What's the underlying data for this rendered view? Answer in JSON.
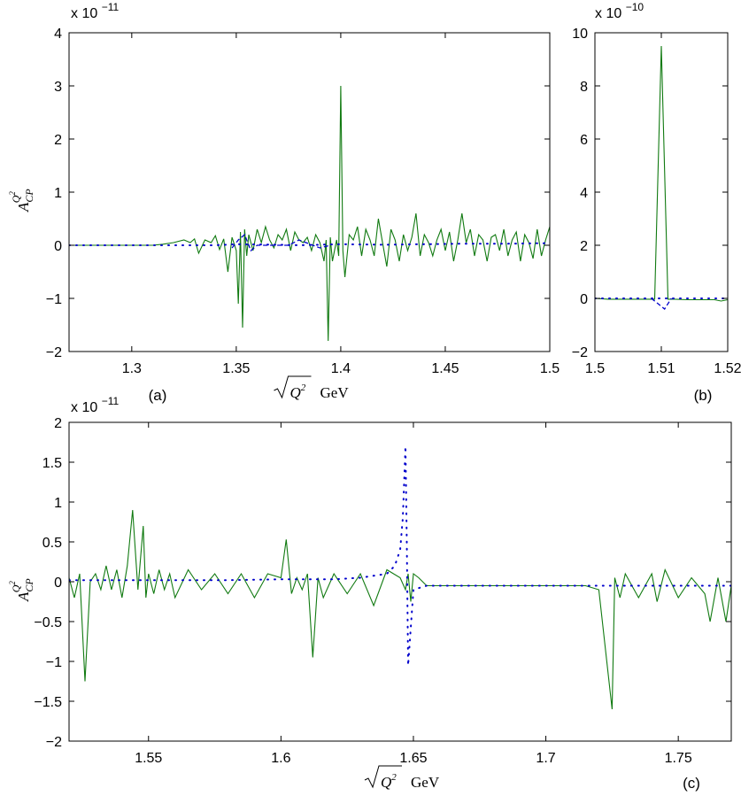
{
  "chart_data": [
    {
      "panel": "(a)",
      "type": "line",
      "xlabel": "√Q² GeV",
      "ylabel": "A_CP^{Q²}",
      "exponent_label": "x 10",
      "exponent_power": "−11",
      "xlim": [
        1.27,
        1.5
      ],
      "ylim": [
        -2,
        4
      ],
      "xticks": [
        1.3,
        1.35,
        1.4,
        1.45,
        1.5
      ],
      "xtick_labels": [
        "1.3",
        "1.35",
        "1.4",
        "1.45",
        "1.5"
      ],
      "yticks": [
        -2,
        -1,
        0,
        1,
        2,
        3,
        4
      ],
      "ytick_labels": [
        "−2",
        "−1",
        "0",
        "1",
        "2",
        "3",
        "4"
      ],
      "series": [
        {
          "style": "solid",
          "color": "#117a11",
          "x": [
            1.27,
            1.31,
            1.315,
            1.32,
            1.325,
            1.328,
            1.33,
            1.332,
            1.335,
            1.338,
            1.34,
            1.342,
            1.344,
            1.346,
            1.348,
            1.35,
            1.351,
            1.352,
            1.353,
            1.354,
            1.355,
            1.356,
            1.358,
            1.36,
            1.362,
            1.364,
            1.366,
            1.368,
            1.37,
            1.372,
            1.374,
            1.376,
            1.378,
            1.38,
            1.382,
            1.384,
            1.386,
            1.388,
            1.39,
            1.392,
            1.393,
            1.394,
            1.395,
            1.396,
            1.398,
            1.399,
            1.4,
            1.401,
            1.402,
            1.404,
            1.406,
            1.408,
            1.41,
            1.412,
            1.414,
            1.416,
            1.418,
            1.42,
            1.422,
            1.424,
            1.426,
            1.428,
            1.43,
            1.432,
            1.434,
            1.436,
            1.438,
            1.44,
            1.442,
            1.444,
            1.446,
            1.448,
            1.45,
            1.452,
            1.454,
            1.456,
            1.458,
            1.46,
            1.462,
            1.464,
            1.466,
            1.468,
            1.47,
            1.472,
            1.474,
            1.476,
            1.478,
            1.48,
            1.482,
            1.484,
            1.486,
            1.488,
            1.49,
            1.492,
            1.494,
            1.496,
            1.498,
            1.5
          ],
          "y": [
            0,
            0,
            0.02,
            0.05,
            0.1,
            0.05,
            0.12,
            -0.15,
            0.1,
            0.05,
            0.18,
            -0.08,
            0.12,
            -0.5,
            0.15,
            -0.1,
            -1.1,
            0.25,
            -1.55,
            0.3,
            -0.2,
            0.2,
            -0.1,
            0.3,
            0.05,
            0.35,
            0.1,
            -0.05,
            0.2,
            0.1,
            0.3,
            -0.1,
            0.25,
            0.1,
            0.05,
            0.15,
            -0.1,
            0.2,
            0.05,
            -0.3,
            0.1,
            -1.8,
            0.15,
            -0.3,
            0.1,
            -0.2,
            3.0,
            -0.1,
            -0.6,
            0.2,
            0.1,
            0.35,
            -0.2,
            0.3,
            0.1,
            -0.2,
            0.5,
            0.05,
            -0.4,
            0.3,
            0.1,
            -0.3,
            0.2,
            -0.1,
            0.15,
            0.6,
            -0.2,
            0.2,
            0.05,
            -0.2,
            0.1,
            0.3,
            -0.1,
            0.25,
            -0.3,
            0.1,
            0.6,
            0.05,
            0.3,
            -0.2,
            0.2,
            0.1,
            -0.3,
            0.15,
            0.2,
            -0.1,
            0.3,
            -0.2,
            0.1,
            0.25,
            -0.3,
            0.2,
            0.05,
            -0.25,
            0.3,
            -0.2,
            0.1,
            0.35
          ]
        },
        {
          "style": "dashed",
          "color": "#0000cc",
          "x": [
            1.348,
            1.351,
            1.354,
            1.357,
            1.36,
            1.375,
            1.38,
            1.39,
            1.395
          ],
          "y": [
            -0.05,
            0.1,
            0.2,
            -0.1,
            0.0,
            0.0,
            0.1,
            -0.05,
            0.0
          ]
        },
        {
          "style": "dotted",
          "color": "#0000cc",
          "x": [
            1.27,
            1.28,
            1.29,
            1.3,
            1.31,
            1.32,
            1.33,
            1.34,
            1.35,
            1.37,
            1.38,
            1.4,
            1.42,
            1.44,
            1.46,
            1.48,
            1.5
          ],
          "y": [
            0,
            0,
            0,
            0,
            0,
            0,
            0,
            0,
            0.02,
            0.01,
            0.0,
            0.02,
            0.01,
            0.02,
            0.03,
            0.03,
            0.04
          ]
        }
      ]
    },
    {
      "panel": "(b)",
      "type": "line",
      "xlabel": "",
      "ylabel": "",
      "exponent_label": "x 10",
      "exponent_power": "−10",
      "xlim": [
        1.5,
        1.52
      ],
      "ylim": [
        -2,
        10
      ],
      "xticks": [
        1.5,
        1.51,
        1.52
      ],
      "xtick_labels": [
        "1.5",
        "1.51",
        "1.52"
      ],
      "yticks": [
        -2,
        0,
        2,
        4,
        6,
        8,
        10
      ],
      "ytick_labels": [
        "−2",
        "0",
        "2",
        "4",
        "6",
        "8",
        "10"
      ],
      "series": [
        {
          "style": "solid",
          "color": "#117a11",
          "x": [
            1.5,
            1.502,
            1.504,
            1.506,
            1.508,
            1.509,
            1.51,
            1.511,
            1.512,
            1.514,
            1.516,
            1.518,
            1.519,
            1.52
          ],
          "y": [
            0,
            -0.03,
            -0.03,
            -0.03,
            -0.03,
            -0.03,
            9.5,
            -0.03,
            -0.03,
            -0.05,
            -0.05,
            -0.05,
            -0.1,
            -0.05
          ]
        },
        {
          "style": "dashed",
          "color": "#0000cc",
          "x": [
            1.5085,
            1.5095,
            1.5105,
            1.5115
          ],
          "y": [
            0.0,
            -0.2,
            -0.4,
            0.0
          ]
        },
        {
          "style": "dotted",
          "color": "#0000cc",
          "x": [
            1.5,
            1.505,
            1.51,
            1.515,
            1.52
          ],
          "y": [
            0,
            0,
            0,
            0,
            0
          ]
        }
      ]
    },
    {
      "panel": "(c)",
      "type": "line",
      "xlabel": "√Q² GeV",
      "ylabel": "A_CP^{Q²}",
      "exponent_label": "x 10",
      "exponent_power": "−11",
      "xlim": [
        1.52,
        1.77
      ],
      "ylim": [
        -2,
        2
      ],
      "xticks": [
        1.55,
        1.6,
        1.65,
        1.7,
        1.75
      ],
      "xtick_labels": [
        "1.55",
        "1.6",
        "1.65",
        "1.7",
        "1.75"
      ],
      "yticks": [
        -2,
        -1.5,
        -1,
        -0.5,
        0,
        0.5,
        1,
        1.5,
        2
      ],
      "ytick_labels": [
        "−2",
        "−1.5",
        "−1",
        "−0.5",
        "0",
        "0.5",
        "1",
        "1.5",
        "2"
      ],
      "series": [
        {
          "style": "solid",
          "color": "#117a11",
          "x": [
            1.52,
            1.522,
            1.524,
            1.526,
            1.528,
            1.53,
            1.532,
            1.534,
            1.536,
            1.538,
            1.54,
            1.542,
            1.544,
            1.546,
            1.548,
            1.549,
            1.55,
            1.552,
            1.554,
            1.556,
            1.558,
            1.56,
            1.565,
            1.57,
            1.575,
            1.58,
            1.585,
            1.59,
            1.595,
            1.6,
            1.602,
            1.604,
            1.606,
            1.608,
            1.61,
            1.612,
            1.614,
            1.616,
            1.62,
            1.625,
            1.63,
            1.635,
            1.64,
            1.645,
            1.647,
            1.648,
            1.649,
            1.65,
            1.652,
            1.655,
            1.66,
            1.67,
            1.68,
            1.69,
            1.7,
            1.705,
            1.71,
            1.715,
            1.72,
            1.725,
            1.726,
            1.728,
            1.73,
            1.735,
            1.74,
            1.742,
            1.745,
            1.75,
            1.755,
            1.76,
            1.762,
            1.765,
            1.768,
            1.77
          ],
          "y": [
            0.05,
            -0.2,
            0.1,
            -1.25,
            0.0,
            0.1,
            -0.1,
            0.2,
            -0.1,
            0.15,
            -0.2,
            0.2,
            0.9,
            -0.1,
            0.7,
            -0.2,
            0.1,
            -0.15,
            0.15,
            -0.1,
            0.1,
            -0.2,
            0.15,
            -0.1,
            0.1,
            -0.15,
            0.1,
            -0.2,
            0.1,
            0.05,
            0.53,
            -0.15,
            0.05,
            -0.1,
            0.1,
            -0.95,
            0.05,
            -0.2,
            0.1,
            -0.15,
            0.1,
            -0.3,
            0.15,
            0.05,
            -0.1,
            0.1,
            -0.25,
            0.1,
            0.05,
            -0.05,
            -0.05,
            -0.05,
            -0.05,
            -0.05,
            -0.05,
            -0.05,
            -0.05,
            -0.05,
            -0.1,
            -1.6,
            0.05,
            -0.2,
            0.1,
            -0.2,
            0.1,
            -0.25,
            0.15,
            -0.2,
            0.05,
            -0.15,
            -0.5,
            0.05,
            -0.5,
            -0.05
          ]
        },
        {
          "style": "dotted",
          "color": "#0000cc",
          "x": [
            1.52,
            1.54,
            1.56,
            1.58,
            1.6,
            1.62,
            1.63,
            1.64,
            1.643,
            1.645,
            1.646,
            1.647,
            1.6475,
            1.648,
            1.65,
            1.655,
            1.67,
            1.7,
            1.73,
            1.77
          ],
          "y": [
            0.02,
            0.02,
            0.02,
            0.02,
            0.03,
            0.03,
            0.05,
            0.1,
            0.2,
            0.4,
            0.8,
            1.7,
            0.5,
            -1.05,
            -0.1,
            -0.05,
            -0.05,
            -0.05,
            -0.05,
            -0.05
          ]
        }
      ]
    }
  ]
}
